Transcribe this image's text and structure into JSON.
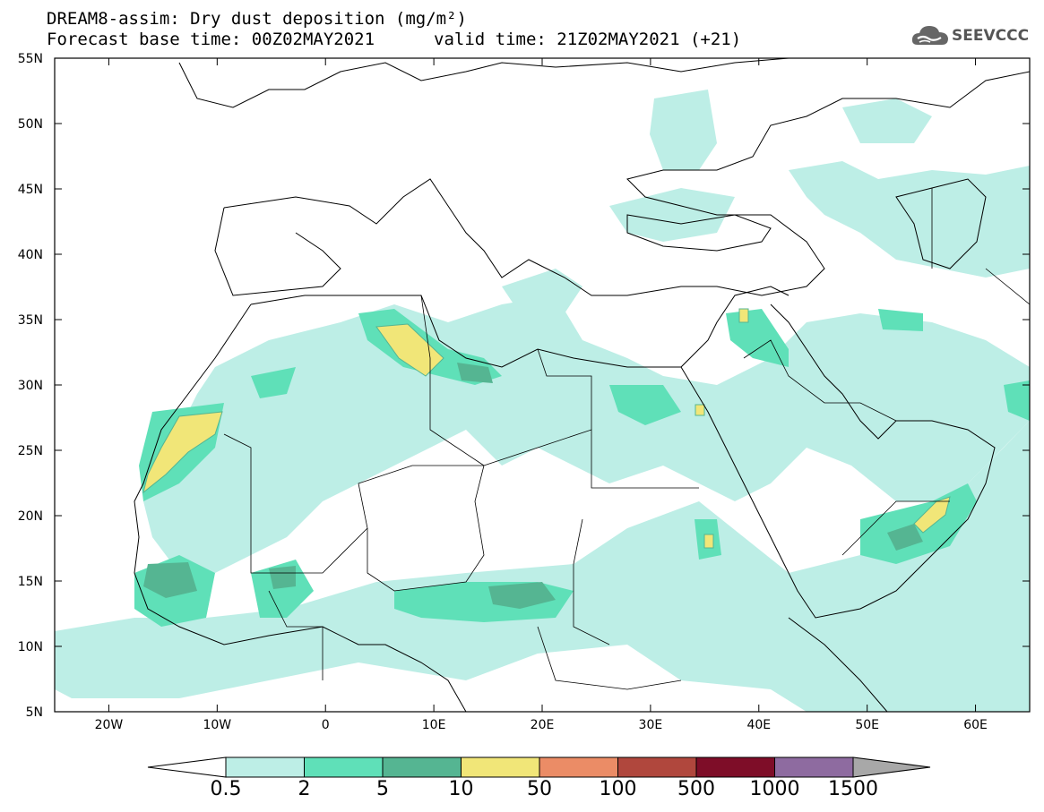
{
  "title": {
    "line1": "DREAM8-assim: Dry dust deposition (mg/m²)",
    "line2": "Forecast base time: 00Z02MAY2021",
    "valid": "valid time: 21Z02MAY2021 (+21)"
  },
  "logo": {
    "text": "SEEVCCC",
    "icon": "cloud-icon"
  },
  "map": {
    "lon_range": [
      -25,
      65
    ],
    "lat_range": [
      5,
      55
    ],
    "lon_ticks": [
      "20W",
      "10W",
      "0",
      "10E",
      "20E",
      "30E",
      "40E",
      "50E",
      "60E"
    ],
    "lon_values": [
      -20,
      -10,
      0,
      10,
      20,
      30,
      40,
      50,
      60
    ],
    "lat_ticks": [
      "55N",
      "50N",
      "45N",
      "40N",
      "35N",
      "30N",
      "25N",
      "20N",
      "15N",
      "10N",
      "5N"
    ],
    "lat_values": [
      55,
      50,
      45,
      40,
      35,
      30,
      25,
      20,
      15,
      10,
      5
    ]
  },
  "colorbar": {
    "labels": [
      "0.5",
      "2",
      "5",
      "10",
      "50",
      "100",
      "500",
      "1000",
      "1500"
    ],
    "colors": [
      "#bdeee6",
      "#5fe0b8",
      "#55b592",
      "#f1e678",
      "#eb8c66",
      "#b0473d",
      "#7e0d28",
      "#8e6ba0"
    ],
    "under_color": "#ffffff",
    "over_color": "#a8a8a8"
  }
}
